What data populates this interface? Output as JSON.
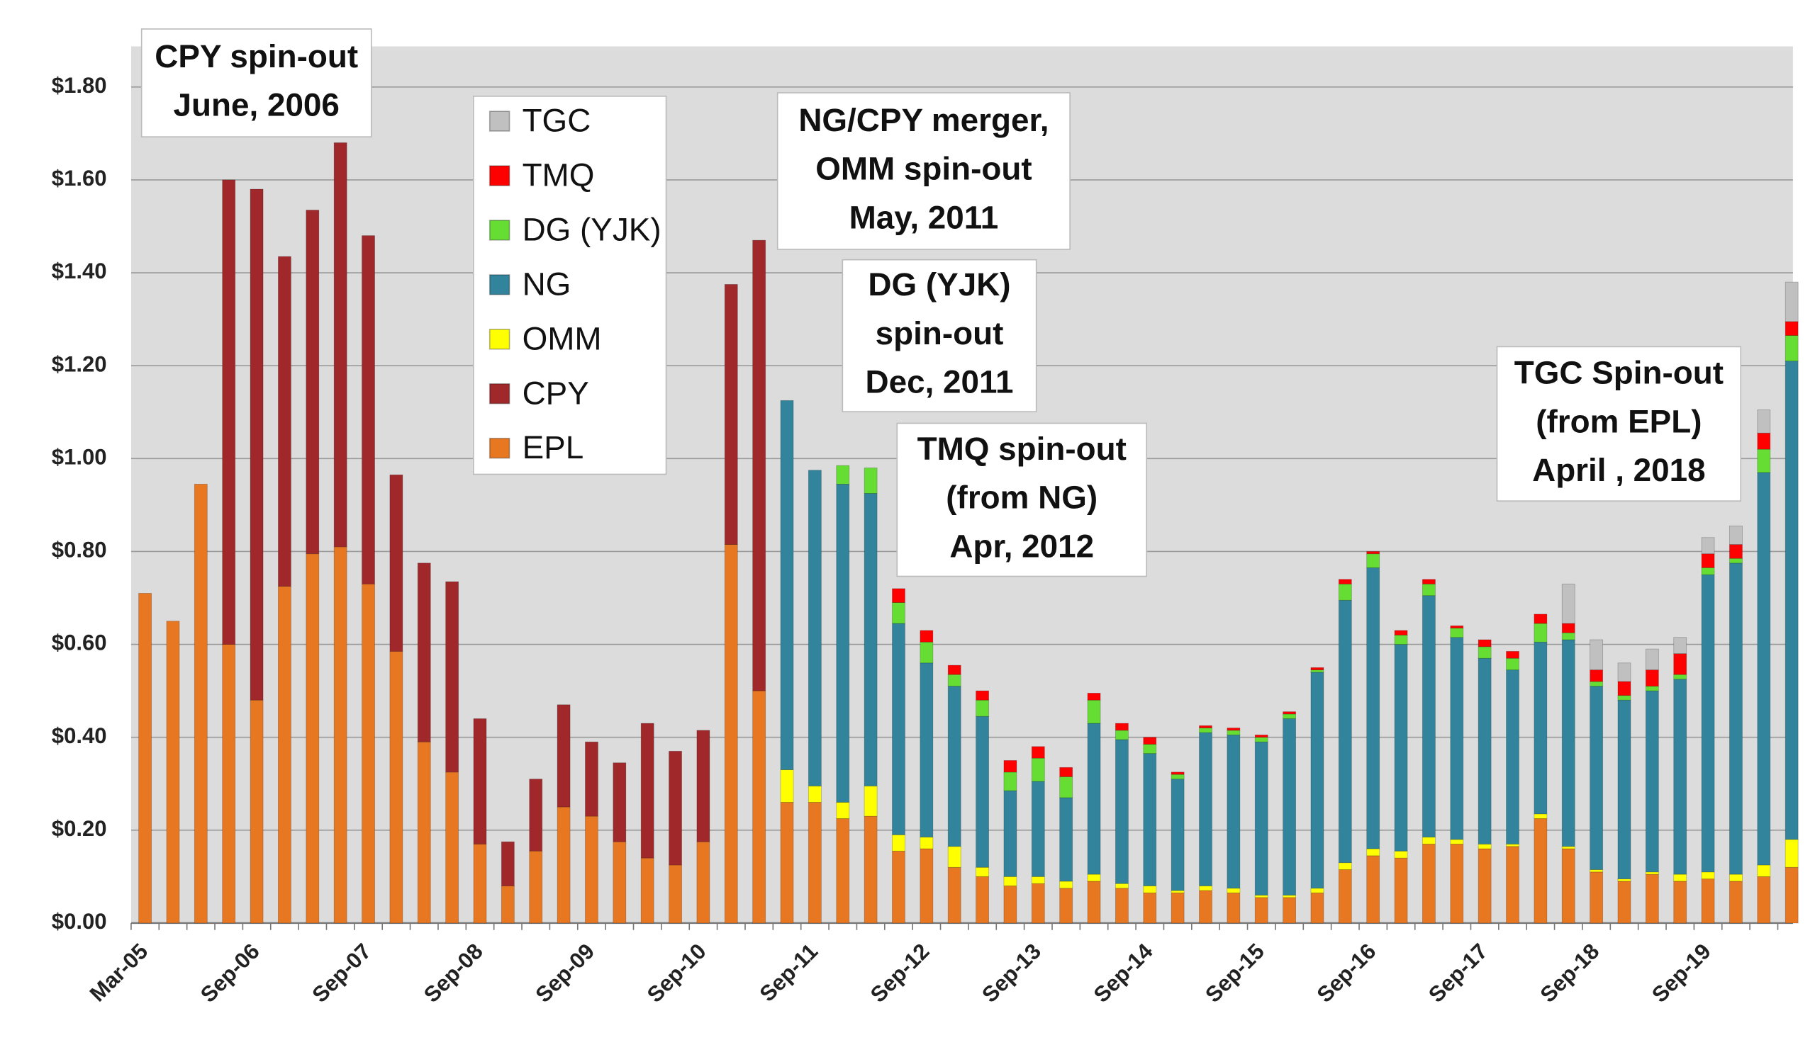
{
  "chart_data": {
    "type": "stacked-bar",
    "categories": [
      "Mar-05",
      null,
      null,
      null,
      "Sep-06",
      null,
      null,
      null,
      "Sep-07",
      null,
      null,
      null,
      "Sep-08",
      null,
      null,
      null,
      "Sep-09",
      null,
      null,
      null,
      "Sep-10",
      null,
      null,
      null,
      "Sep-11",
      null,
      null,
      null,
      "Sep-12",
      null,
      null,
      null,
      "Sep-13",
      null,
      null,
      null,
      "Sep-14",
      null,
      null,
      null,
      "Sep-15",
      null,
      null,
      null,
      "Sep-16",
      null,
      null,
      null,
      "Sep-17",
      null,
      null,
      null,
      "Sep-18",
      null,
      null,
      null,
      "Sep-19",
      null,
      null,
      null
    ],
    "series": [
      {
        "name": "EPL",
        "color": "#e87722",
        "values": [
          0.71,
          0.65,
          0.945,
          0.6,
          0.48,
          0.725,
          0.795,
          0.81,
          0.73,
          0.585,
          0.39,
          0.325,
          0.17,
          0.08,
          0.155,
          0.25,
          0.23,
          0.175,
          0.14,
          0.125,
          0.175,
          0.815,
          0.5,
          0.26,
          0.26,
          0.225,
          0.23,
          0.155,
          0.16,
          0.12,
          0.1,
          0.08,
          0.085,
          0.075,
          0.09,
          0.075,
          0.065,
          0.065,
          0.07,
          0.065,
          0.055,
          0.055,
          0.065,
          0.115,
          0.145,
          0.14,
          0.17,
          0.17,
          0.16,
          0.165,
          0.225,
          0.16,
          0.11,
          0.09,
          0.105,
          0.09,
          0.095,
          0.09,
          0.1,
          0.12
        ]
      },
      {
        "name": "CPY",
        "color": "#a0282a",
        "values": [
          null,
          null,
          null,
          1.0,
          1.1,
          0.71,
          0.74,
          0.87,
          0.75,
          0.38,
          0.385,
          0.41,
          0.27,
          0.095,
          0.155,
          0.22,
          0.16,
          0.17,
          0.29,
          0.245,
          0.24,
          0.56,
          0.97,
          null,
          null,
          null,
          null,
          null,
          null,
          null,
          null,
          null,
          null,
          null,
          null,
          null,
          null,
          null,
          null,
          null,
          null,
          null,
          null,
          null,
          null,
          null,
          null,
          null,
          null,
          null,
          null,
          null,
          null,
          null,
          null,
          null,
          null,
          null,
          null,
          null
        ]
      },
      {
        "name": "OMM",
        "color": "#ffff00",
        "values": [
          null,
          null,
          null,
          null,
          null,
          null,
          null,
          null,
          null,
          null,
          null,
          null,
          null,
          null,
          null,
          null,
          null,
          null,
          null,
          null,
          null,
          null,
          null,
          0.07,
          0.035,
          0.035,
          0.065,
          0.035,
          0.025,
          0.045,
          0.02,
          0.02,
          0.015,
          0.015,
          0.015,
          0.01,
          0.015,
          0.005,
          0.01,
          0.01,
          0.005,
          0.005,
          0.01,
          0.015,
          0.015,
          0.015,
          0.015,
          0.01,
          0.01,
          0.005,
          0.01,
          0.005,
          0.005,
          0.005,
          0.005,
          0.015,
          0.015,
          0.015,
          0.025,
          0.06
        ]
      },
      {
        "name": "NG",
        "color": "#31849b",
        "values": [
          null,
          null,
          null,
          null,
          null,
          null,
          null,
          null,
          null,
          null,
          null,
          null,
          null,
          null,
          null,
          null,
          null,
          null,
          null,
          null,
          null,
          null,
          null,
          0.795,
          0.68,
          0.685,
          0.63,
          0.455,
          0.375,
          0.345,
          0.325,
          0.185,
          0.205,
          0.18,
          0.325,
          0.31,
          0.285,
          0.24,
          0.33,
          0.33,
          0.33,
          0.38,
          0.465,
          0.565,
          0.605,
          0.445,
          0.52,
          0.435,
          0.4,
          0.375,
          0.37,
          0.445,
          0.395,
          0.385,
          0.39,
          0.42,
          0.64,
          0.67,
          0.845,
          1.03
        ]
      },
      {
        "name": "DG (YJK)",
        "color": "#66dd33",
        "values": [
          null,
          null,
          null,
          null,
          null,
          null,
          null,
          null,
          null,
          null,
          null,
          null,
          null,
          null,
          null,
          null,
          null,
          null,
          null,
          null,
          null,
          null,
          null,
          null,
          null,
          0.04,
          0.055,
          0.045,
          0.045,
          0.025,
          0.035,
          0.04,
          0.05,
          0.045,
          0.05,
          0.02,
          0.02,
          0.01,
          0.01,
          0.01,
          0.01,
          0.01,
          0.005,
          0.035,
          0.03,
          0.02,
          0.025,
          0.02,
          0.025,
          0.025,
          0.04,
          0.015,
          0.01,
          0.01,
          0.01,
          0.01,
          0.015,
          0.01,
          0.05,
          0.055
        ]
      },
      {
        "name": "TMQ",
        "color": "#ff0000",
        "values": [
          null,
          null,
          null,
          null,
          null,
          null,
          null,
          null,
          null,
          null,
          null,
          null,
          null,
          null,
          null,
          null,
          null,
          null,
          null,
          null,
          null,
          null,
          null,
          null,
          null,
          null,
          null,
          0.03,
          0.025,
          0.02,
          0.02,
          0.025,
          0.025,
          0.02,
          0.015,
          0.015,
          0.015,
          0.005,
          0.005,
          0.005,
          0.005,
          0.005,
          0.005,
          0.01,
          0.005,
          0.01,
          0.01,
          0.005,
          0.015,
          0.015,
          0.02,
          0.02,
          0.025,
          0.03,
          0.035,
          0.045,
          0.03,
          0.03,
          0.035,
          0.03
        ]
      },
      {
        "name": "TGC",
        "color": "#c0c0c0",
        "values": [
          null,
          null,
          null,
          null,
          null,
          null,
          null,
          null,
          null,
          null,
          null,
          null,
          null,
          null,
          null,
          null,
          null,
          null,
          null,
          null,
          null,
          null,
          null,
          null,
          null,
          null,
          null,
          null,
          null,
          null,
          null,
          null,
          null,
          null,
          null,
          null,
          null,
          null,
          null,
          null,
          null,
          null,
          null,
          null,
          null,
          null,
          null,
          null,
          null,
          null,
          null,
          0.085,
          0.065,
          0.04,
          0.045,
          0.035,
          0.035,
          0.04,
          0.05,
          0.085
        ]
      }
    ],
    "ylim": [
      0,
      1.8
    ],
    "yticks": [
      {
        "value": 0,
        "label": "$0.00"
      },
      {
        "value": 0.2,
        "label": "$0.20"
      },
      {
        "value": 0.4,
        "label": "$0.40"
      },
      {
        "value": 0.6,
        "label": "$0.60"
      },
      {
        "value": 0.8,
        "label": "$0.80"
      },
      {
        "value": 1.0,
        "label": "$1.00"
      },
      {
        "value": 1.2,
        "label": "$1.20"
      },
      {
        "value": 1.4,
        "label": "$1.40"
      },
      {
        "value": 1.6,
        "label": "$1.60"
      },
      {
        "value": 1.8,
        "label": "$1.80"
      }
    ],
    "grid": true,
    "annotations": [
      {
        "lines": [
          "CPY spin-out",
          "June, 2006"
        ]
      },
      {
        "lines": [
          "NG/CPY merger,",
          "OMM spin-out",
          "May, 2011"
        ]
      },
      {
        "lines": [
          "DG (YJK)",
          "spin-out",
          "Dec, 2011"
        ]
      },
      {
        "lines": [
          "TMQ spin-out",
          "(from NG)",
          "Apr, 2012"
        ]
      },
      {
        "lines": [
          "TGC Spin-out",
          "(from EPL)",
          "April , 2018"
        ]
      }
    ]
  }
}
